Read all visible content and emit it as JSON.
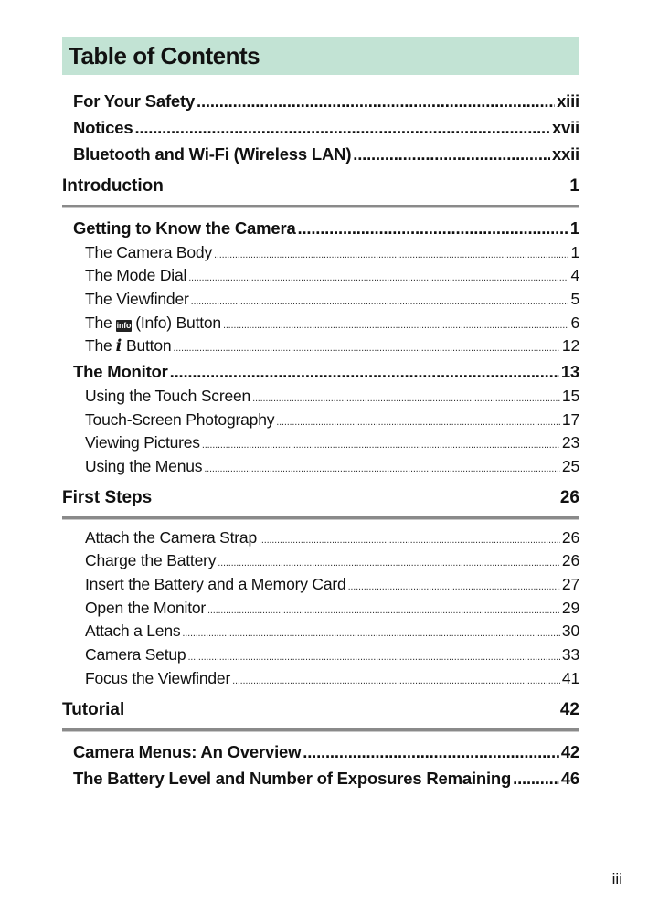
{
  "title": "Table of Contents",
  "colors": {
    "title_background": "#c2e3d4",
    "rule": "#8a8a8a"
  },
  "front_matter": [
    {
      "label": "For Your Safety",
      "page": "xiii"
    },
    {
      "label": "Notices",
      "page": "xvii"
    },
    {
      "label": "Bluetooth and Wi-Fi (Wireless LAN)",
      "page": "xxii"
    }
  ],
  "chapters": [
    {
      "title": "Introduction",
      "page": "1",
      "entries": [
        {
          "level": 1,
          "label": "Getting to Know the Camera",
          "page": "1"
        },
        {
          "level": 2,
          "label": "The Camera Body",
          "page": "1"
        },
        {
          "level": 2,
          "label": "The Mode Dial",
          "page": "4"
        },
        {
          "level": 2,
          "label": "The Viewfinder",
          "page": "5"
        },
        {
          "level": 2,
          "label_before": "The",
          "icon": "info-button-icon",
          "icon_text": "info",
          "label": "(Info) Button",
          "page": "6"
        },
        {
          "level": 2,
          "label_before": "The",
          "icon": "i-button-icon",
          "icon_text": "i",
          "label": "Button",
          "page": "12"
        },
        {
          "level": 1,
          "label": "The Monitor",
          "page": "13"
        },
        {
          "level": 2,
          "label": "Using the Touch Screen",
          "page": "15"
        },
        {
          "level": 2,
          "label": "Touch-Screen Photography",
          "page": "17"
        },
        {
          "level": 2,
          "label": "Viewing Pictures",
          "page": "23"
        },
        {
          "level": 2,
          "label": "Using the Menus",
          "page": "25"
        }
      ]
    },
    {
      "title": "First Steps",
      "page": "26",
      "entries": [
        {
          "level": 2,
          "label": "Attach the Camera Strap",
          "page": "26"
        },
        {
          "level": 2,
          "label": "Charge the Battery",
          "page": "26"
        },
        {
          "level": 2,
          "label": "Insert the Battery and a Memory Card",
          "page": "27"
        },
        {
          "level": 2,
          "label": "Open the Monitor",
          "page": "29"
        },
        {
          "level": 2,
          "label": "Attach a Lens",
          "page": "30"
        },
        {
          "level": 2,
          "label": "Camera Setup",
          "page": "33"
        },
        {
          "level": 2,
          "label": "Focus the Viewfinder",
          "page": "41"
        }
      ]
    },
    {
      "title": "Tutorial",
      "page": "42",
      "entries": [
        {
          "level": 1,
          "label": "Camera Menus: An Overview",
          "page": "42"
        },
        {
          "level": 1,
          "label": "The Battery Level and Number of Exposures Remaining",
          "page": "46"
        }
      ]
    }
  ],
  "folio": "iii"
}
